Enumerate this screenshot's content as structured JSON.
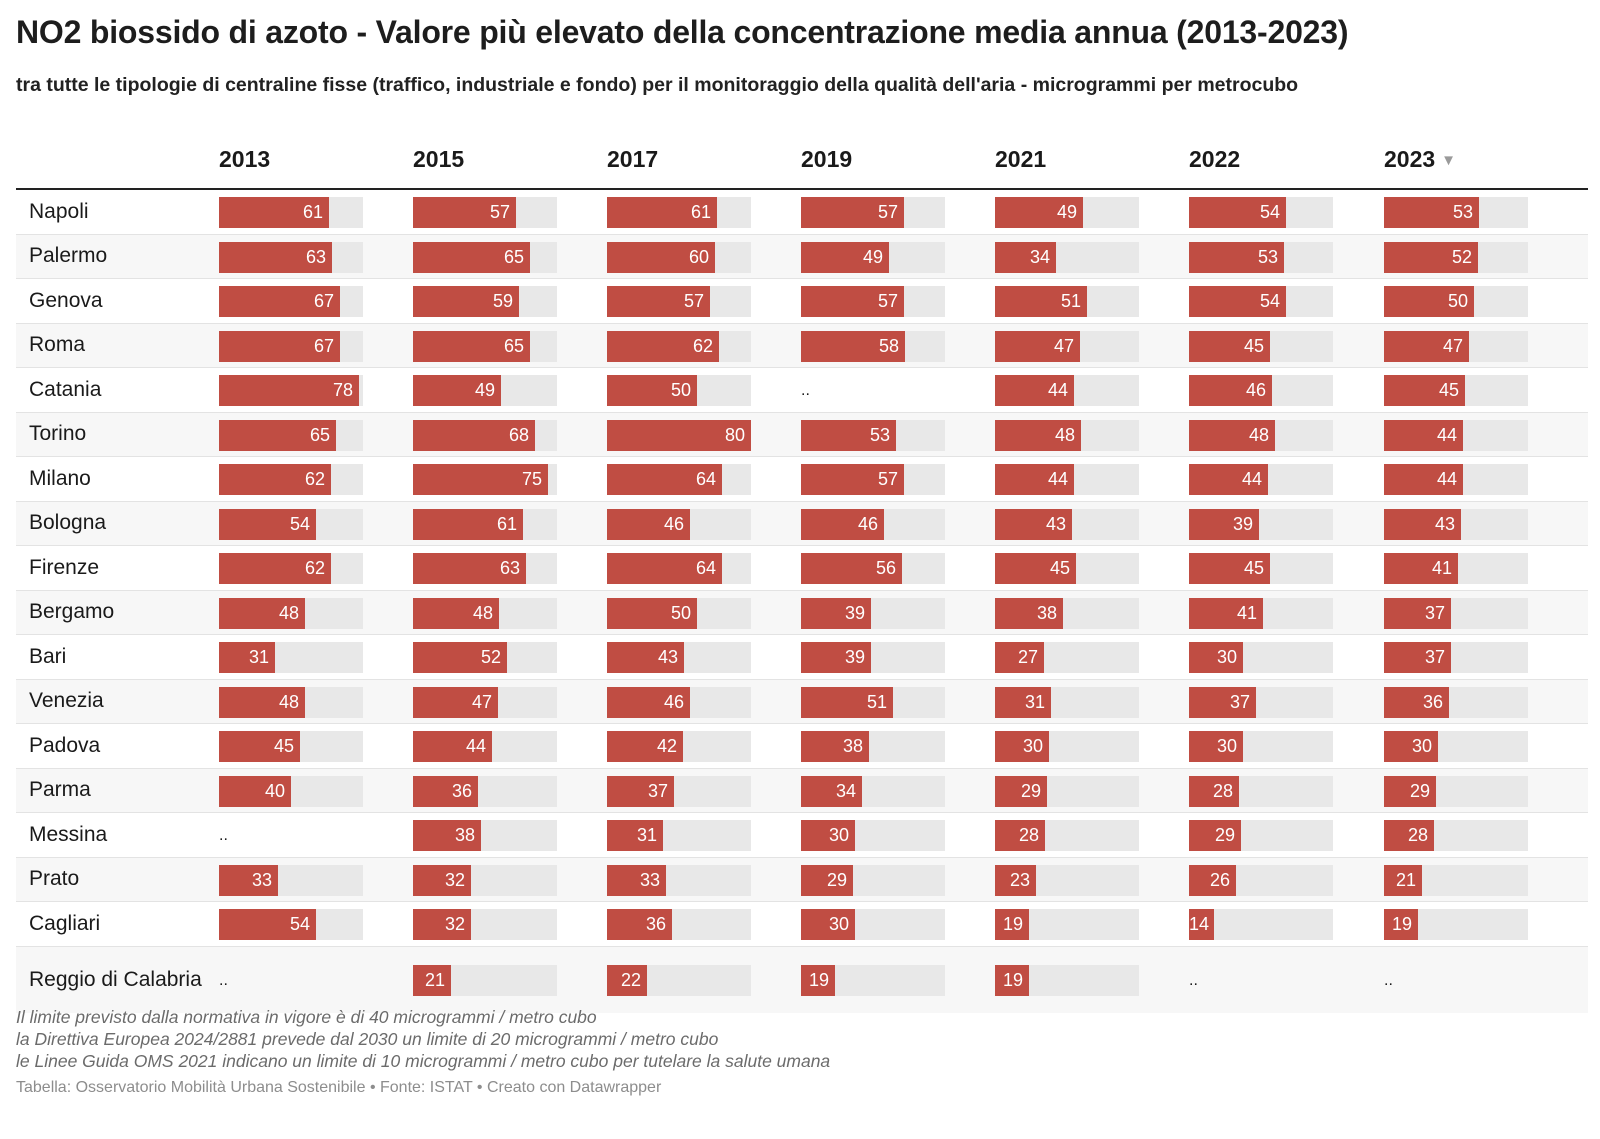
{
  "title": "NO2 biossido di azoto - Valore più elevato della concentrazione media annua (2013-2023)",
  "subtitle": "tra tutte le tipologie di centraline fisse (traffico, industriale e fondo) per il monitoraggio della qualità dell'aria - microgrammi per metrocubo",
  "notes": [
    "Il limite previsto dalla normativa in vigore è di 40 microgrammi / metro cubo",
    "la Direttiva Europea 2024/2881 prevede dal 2030 un limite di 20 microgrammi / metro cubo",
    "le Linee Guida OMS 2021 indicano un limite di 10 microgrammi / metro cubo per tutelare la salute umana"
  ],
  "footer": "Tabella: Osservatorio Mobilità Urbana Sostenibile • Fonte: ISTAT • Creato con Datawrapper",
  "sort_icon": "sort-descending-triangle-icon",
  "missing_symbol": "..",
  "colors": {
    "bar": "#c04d43",
    "track": "#e8e8e8",
    "stripe": "#f7f7f7"
  },
  "chart_data": {
    "type": "table",
    "title": "NO2 biossido di azoto - Valore più elevato della concentrazione media annua (2013-2023)",
    "columns": [
      "2013",
      "2015",
      "2017",
      "2019",
      "2021",
      "2022",
      "2023"
    ],
    "sorted_by": "2023",
    "sort_order": "descending",
    "bar_max": 80,
    "rows": [
      {
        "city": "Napoli",
        "values": [
          61,
          57,
          61,
          57,
          49,
          54,
          53
        ]
      },
      {
        "city": "Palermo",
        "values": [
          63,
          65,
          60,
          49,
          34,
          53,
          52
        ]
      },
      {
        "city": "Genova",
        "values": [
          67,
          59,
          57,
          57,
          51,
          54,
          50
        ]
      },
      {
        "city": "Roma",
        "values": [
          67,
          65,
          62,
          58,
          47,
          45,
          47
        ]
      },
      {
        "city": "Catania",
        "values": [
          78,
          49,
          50,
          null,
          44,
          46,
          45
        ]
      },
      {
        "city": "Torino",
        "values": [
          65,
          68,
          80,
          53,
          48,
          48,
          44
        ]
      },
      {
        "city": "Milano",
        "values": [
          62,
          75,
          64,
          57,
          44,
          44,
          44
        ]
      },
      {
        "city": "Bologna",
        "values": [
          54,
          61,
          46,
          46,
          43,
          39,
          43
        ]
      },
      {
        "city": "Firenze",
        "values": [
          62,
          63,
          64,
          56,
          45,
          45,
          41
        ]
      },
      {
        "city": "Bergamo",
        "values": [
          48,
          48,
          50,
          39,
          38,
          41,
          37
        ]
      },
      {
        "city": "Bari",
        "values": [
          31,
          52,
          43,
          39,
          27,
          30,
          37
        ]
      },
      {
        "city": "Venezia",
        "values": [
          48,
          47,
          46,
          51,
          31,
          37,
          36
        ]
      },
      {
        "city": "Padova",
        "values": [
          45,
          44,
          42,
          38,
          30,
          30,
          30
        ]
      },
      {
        "city": "Parma",
        "values": [
          40,
          36,
          37,
          34,
          29,
          28,
          29
        ]
      },
      {
        "city": "Messina",
        "values": [
          null,
          38,
          31,
          30,
          28,
          29,
          28
        ]
      },
      {
        "city": "Prato",
        "values": [
          33,
          32,
          33,
          29,
          23,
          26,
          21
        ]
      },
      {
        "city": "Cagliari",
        "values": [
          54,
          32,
          36,
          30,
          19,
          14,
          19
        ]
      },
      {
        "city": "Reggio di Calabria",
        "values": [
          null,
          21,
          22,
          19,
          19,
          null,
          null
        ]
      }
    ]
  }
}
